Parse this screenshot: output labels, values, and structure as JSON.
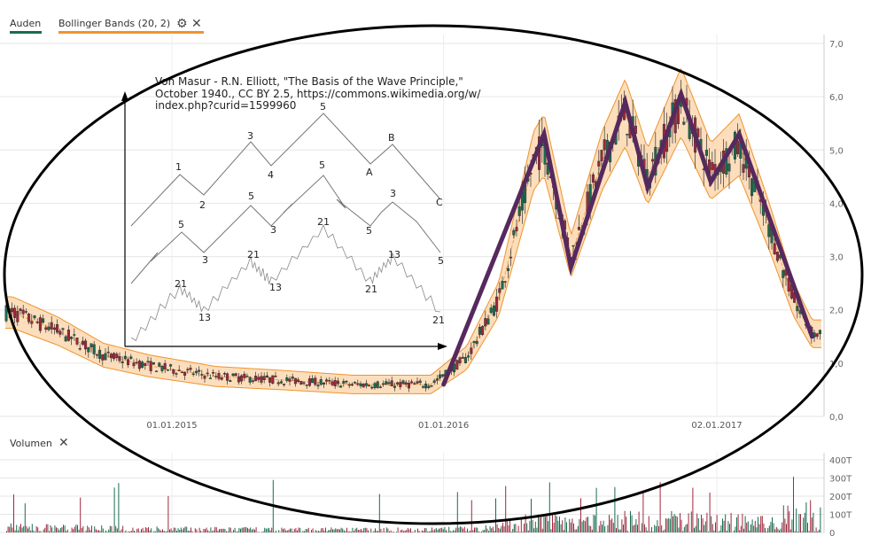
{
  "legend": {
    "series_label": "Auden",
    "series_color": "#1a6b4f",
    "indicator_label": "Bollinger Bands (20, 2)",
    "indicator_color": "#f0932b",
    "settings_icon": "gear-icon",
    "close_icon": "close-icon"
  },
  "volume_panel": {
    "label": "Volumen",
    "close_icon": "close-icon"
  },
  "annotation": {
    "line1": "Von Masur - R.N. Elliott, \"The Basis of the Wave Principle,\"",
    "line2": "October 1940., CC BY 2.5, https://commons.wikimedia.org/w/",
    "line3": "index.php?curid=1599960"
  },
  "elliott_diagram": {
    "top_labels": [
      "1",
      "2",
      "3",
      "4",
      "5",
      "A",
      "B",
      "C"
    ],
    "mid_labels": [
      "5",
      "3",
      "5",
      "3",
      "5",
      "5",
      "3",
      "5"
    ],
    "low_labels": [
      "21",
      "13",
      "21",
      "13",
      "21",
      "21",
      "13",
      "21"
    ]
  },
  "chart_data": {
    "type": "candlestick",
    "price_axis": {
      "ticks": [
        "0,0",
        "1,0",
        "2,0",
        "3,0",
        "4,0",
        "5,0",
        "6,0",
        "7,0"
      ],
      "ylim": [
        0,
        7
      ]
    },
    "volume_axis": {
      "ticks": [
        "0",
        "100T",
        "200T",
        "300T",
        "400T"
      ],
      "ylim": [
        0,
        400
      ]
    },
    "x_ticks": [
      "01.01.2015",
      "01.01.2016",
      "02.01.2017"
    ],
    "elliott_wave_path": [
      {
        "date": "2016-01-01",
        "price": 0.6
      },
      {
        "date": "2016-05-15",
        "price": 5.3
      },
      {
        "date": "2016-06-20",
        "price": 2.8
      },
      {
        "date": "2016-09-01",
        "price": 5.9
      },
      {
        "date": "2016-10-01",
        "price": 4.3
      },
      {
        "date": "2016-11-15",
        "price": 6.05
      },
      {
        "date": "2016-12-25",
        "price": 4.4
      },
      {
        "date": "2017-02-01",
        "price": 5.3
      },
      {
        "date": "2017-05-10",
        "price": 1.5
      }
    ],
    "price_envelope": [
      {
        "date": "2014-06-01",
        "price": 1.95
      },
      {
        "date": "2014-08-01",
        "price": 1.6
      },
      {
        "date": "2014-10-01",
        "price": 1.15
      },
      {
        "date": "2014-12-01",
        "price": 0.95
      },
      {
        "date": "2015-03-01",
        "price": 0.75
      },
      {
        "date": "2015-06-01",
        "price": 0.68
      },
      {
        "date": "2015-09-01",
        "price": 0.6
      },
      {
        "date": "2015-12-15",
        "price": 0.6
      },
      {
        "date": "2016-02-01",
        "price": 1.1
      },
      {
        "date": "2016-03-15",
        "price": 2.2
      },
      {
        "date": "2016-05-01",
        "price": 4.8
      },
      {
        "date": "2016-05-15",
        "price": 5.1
      },
      {
        "date": "2016-06-20",
        "price": 3.0
      },
      {
        "date": "2016-08-01",
        "price": 4.8
      },
      {
        "date": "2016-09-01",
        "price": 5.7
      },
      {
        "date": "2016-10-01",
        "price": 4.5
      },
      {
        "date": "2016-11-15",
        "price": 5.9
      },
      {
        "date": "2016-12-25",
        "price": 4.6
      },
      {
        "date": "2017-02-01",
        "price": 5.1
      },
      {
        "date": "2017-03-15",
        "price": 3.5
      },
      {
        "date": "2017-04-15",
        "price": 2.2
      },
      {
        "date": "2017-05-10",
        "price": 1.55
      }
    ]
  }
}
